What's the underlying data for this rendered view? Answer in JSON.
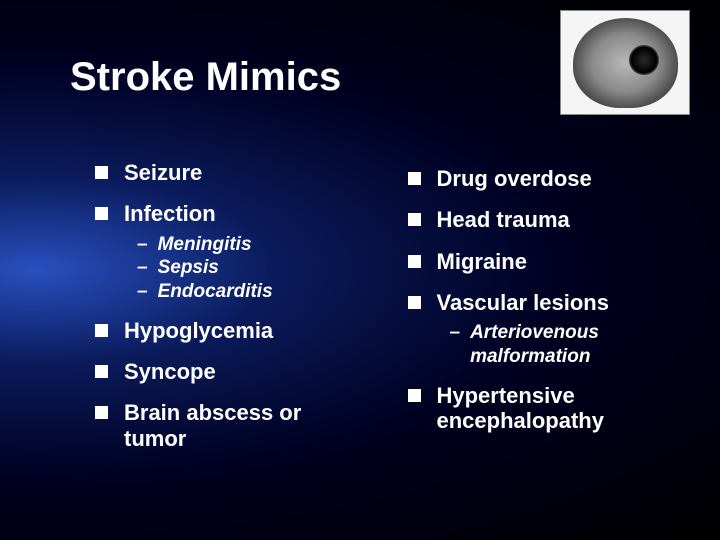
{
  "title": "Stroke Mimics",
  "left_col": [
    {
      "label": "Seizure",
      "sub": []
    },
    {
      "label": "Infection",
      "sub": [
        "Meningitis",
        "Sepsis",
        "Endocarditis"
      ]
    },
    {
      "label": "Hypoglycemia",
      "sub": []
    },
    {
      "label": "Syncope",
      "sub": []
    },
    {
      "label": "Brain abscess or tumor",
      "sub": []
    }
  ],
  "right_col": [
    {
      "label": "Drug overdose",
      "sub": []
    },
    {
      "label": "Head trauma",
      "sub": []
    },
    {
      "label": "Migraine",
      "sub": []
    },
    {
      "label": "Vascular lesions",
      "sub": [
        "Arteriovenous malformation"
      ]
    },
    {
      "label": "Hypertensive encephalopathy",
      "sub": []
    }
  ],
  "styling": {
    "slide_width": 720,
    "slide_height": 540,
    "background_gradient": [
      "#2850c0",
      "#0a1a5a",
      "#000020",
      "#000000"
    ],
    "text_color": "#ffffff",
    "title_fontsize": 40,
    "item_fontsize": 22,
    "subitem_fontsize": 19,
    "bullet_shape": "square",
    "bullet_size": 13,
    "subbullet_char": "–",
    "font_family": "Verdana",
    "ct_image": {
      "width": 130,
      "height": 105,
      "position": "top-right"
    }
  }
}
